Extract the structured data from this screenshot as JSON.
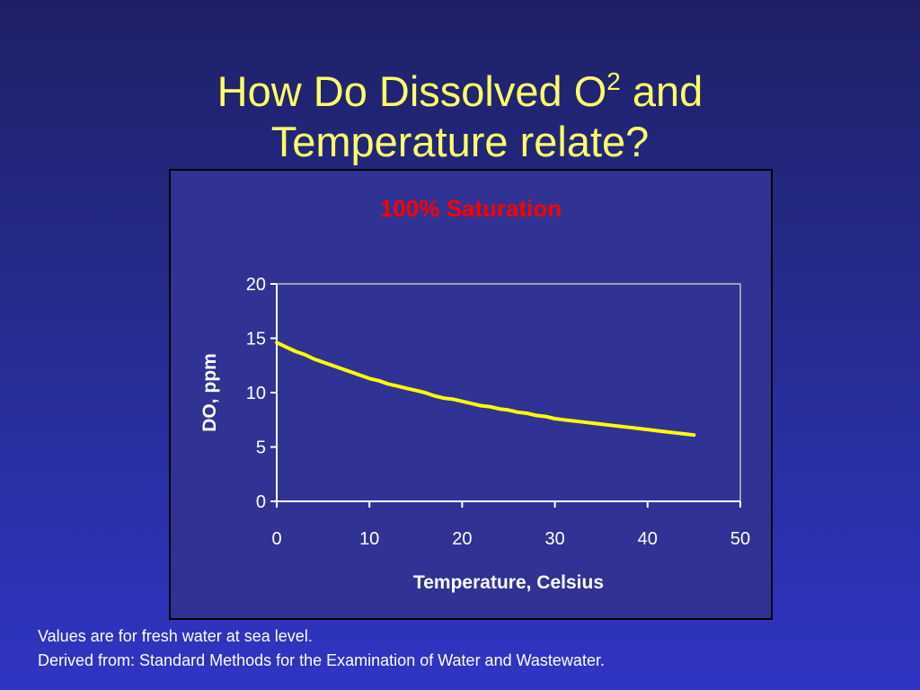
{
  "slide": {
    "title_line1_pre": "How Do Dissolved O",
    "title_sup": "2",
    "title_line1_post": " and",
    "title_line2": "Temperature relate?",
    "footnotes": [
      "Values are for fresh water at sea level.",
      "Derived from: Standard Methods for the Examination of Water and Wastewater."
    ]
  },
  "chart_data": {
    "type": "line",
    "title": "100% Saturation",
    "xlabel": "Temperature, Celsius",
    "ylabel": "DO, ppm",
    "xlim": [
      0,
      50
    ],
    "ylim": [
      0,
      20
    ],
    "xticks": [
      0,
      10,
      20,
      30,
      40,
      50
    ],
    "yticks": [
      0,
      5,
      10,
      15,
      20
    ],
    "grid": false,
    "legend": "none",
    "colors": {
      "line": "#ffff00",
      "title": "#ff0000",
      "text": "#ffffff",
      "plot_bg": "#303393",
      "plot_border": "#c0c0c0"
    },
    "series": [
      {
        "x": [
          0,
          1,
          2,
          3,
          4,
          5,
          6,
          7,
          8,
          9,
          10,
          11,
          12,
          13,
          14,
          15,
          16,
          17,
          18,
          19,
          20,
          21,
          22,
          23,
          24,
          25,
          26,
          27,
          28,
          29,
          30,
          31,
          32,
          33,
          34,
          35,
          36,
          37,
          38,
          39,
          40,
          41,
          42,
          43,
          44,
          45
        ],
        "values": [
          14.6,
          14.2,
          13.8,
          13.5,
          13.1,
          12.8,
          12.5,
          12.2,
          11.9,
          11.6,
          11.3,
          11.1,
          10.8,
          10.6,
          10.4,
          10.2,
          10.0,
          9.7,
          9.5,
          9.4,
          9.2,
          9.0,
          8.8,
          8.7,
          8.5,
          8.4,
          8.2,
          8.1,
          7.9,
          7.8,
          7.6,
          7.5,
          7.4,
          7.3,
          7.2,
          7.1,
          7.0,
          6.9,
          6.8,
          6.7,
          6.6,
          6.5,
          6.4,
          6.3,
          6.2,
          6.1
        ]
      }
    ]
  }
}
